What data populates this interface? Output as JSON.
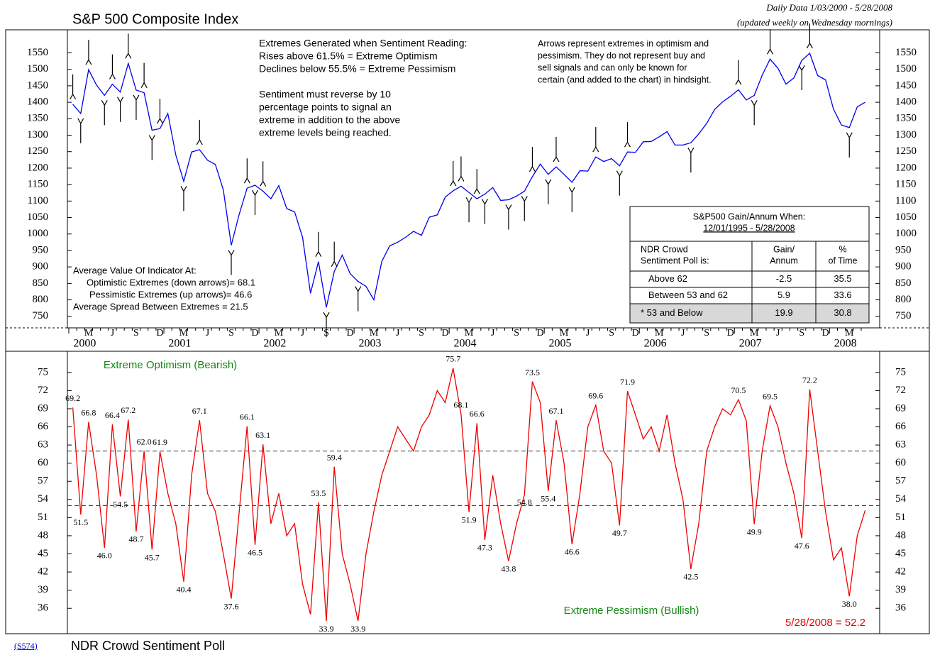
{
  "header": {
    "title": "S&P 500 Composite Index",
    "subtitle": "Daily Data 1/03/2000 - 5/28/2008",
    "update_note": "(updated weekly on Wednesday mornings)"
  },
  "notes": {
    "extremes": [
      "Extremes Generated when Sentiment Reading:",
      "Rises above 61.5%  = Extreme Optimism",
      "Declines below 55.5% = Extreme Pessimism",
      "",
      "Sentiment must reverse by 10",
      "percentage points to signal an",
      "extreme in addition to the above",
      "extreme levels being reached."
    ],
    "arrows": [
      "Arrows represent extremes in optimism and",
      "pessimism. They do not represent buy and",
      "sell signals and can only be known for",
      "certain (and added to the chart) in hindsight."
    ],
    "averages": [
      "Average Value Of Indicator At:",
      "Optimistic Extremes (down arrows)=  68.1",
      "Pessimistic Extremes (up arrows)=  46.6",
      "Average Spread Between Extremes = 21.5"
    ]
  },
  "table": {
    "title": "S&P500 Gain/Annum When:",
    "period": "12/01/1995 -  5/28/2008",
    "header": [
      [
        "NDR Crowd",
        "Sentiment Poll is:"
      ],
      [
        "Gain/",
        "Annum"
      ],
      [
        "%",
        "of Time"
      ]
    ],
    "rows": [
      [
        "Above 62",
        -2.5,
        35.5
      ],
      [
        "Between 53 and 62",
        5.9,
        33.6
      ],
      [
        "* 53 and Below",
        19.9,
        30.8
      ]
    ]
  },
  "footer": {
    "code": "(S574)",
    "title": "NDR Crowd Sentiment Poll"
  },
  "axis": {
    "month_labels": [
      "M",
      "J",
      "S",
      "D"
    ],
    "years": [
      "2000",
      "2001",
      "2002",
      "2003",
      "2004",
      "2005",
      "2006",
      "2007",
      "2008"
    ]
  },
  "chart_data": [
    {
      "type": "line",
      "ylim": [
        715,
        1620
      ],
      "yticks": [
        750,
        800,
        850,
        900,
        950,
        1000,
        1050,
        1100,
        1150,
        1200,
        1250,
        1300,
        1350,
        1400,
        1450,
        1500,
        1550
      ],
      "x": [
        "2000-01",
        "2000-02",
        "2000-03",
        "2000-04",
        "2000-05",
        "2000-06",
        "2000-07",
        "2000-08",
        "2000-09",
        "2000-10",
        "2000-11",
        "2000-12",
        "2001-01",
        "2001-02",
        "2001-03",
        "2001-04",
        "2001-05",
        "2001-06",
        "2001-07",
        "2001-08",
        "2001-09",
        "2001-10",
        "2001-11",
        "2001-12",
        "2002-01",
        "2002-02",
        "2002-03",
        "2002-04",
        "2002-05",
        "2002-06",
        "2002-07",
        "2002-08",
        "2002-09",
        "2002-10",
        "2002-11",
        "2002-12",
        "2003-01",
        "2003-02",
        "2003-03",
        "2003-04",
        "2003-05",
        "2003-06",
        "2003-07",
        "2003-08",
        "2003-09",
        "2003-10",
        "2003-11",
        "2003-12",
        "2004-01",
        "2004-02",
        "2004-03",
        "2004-04",
        "2004-05",
        "2004-06",
        "2004-07",
        "2004-08",
        "2004-09",
        "2004-10",
        "2004-11",
        "2004-12",
        "2005-01",
        "2005-02",
        "2005-03",
        "2005-04",
        "2005-05",
        "2005-06",
        "2005-07",
        "2005-08",
        "2005-09",
        "2005-10",
        "2005-11",
        "2005-12",
        "2006-01",
        "2006-02",
        "2006-03",
        "2006-04",
        "2006-05",
        "2006-06",
        "2006-07",
        "2006-08",
        "2006-09",
        "2006-10",
        "2006-11",
        "2006-12",
        "2007-01",
        "2007-02",
        "2007-03",
        "2007-04",
        "2007-05",
        "2007-06",
        "2007-07",
        "2007-08",
        "2007-09",
        "2007-10",
        "2007-11",
        "2007-12",
        "2008-01",
        "2008-02",
        "2008-03",
        "2008-04",
        "2008-05"
      ],
      "series": [
        {
          "color": "#0000ee",
          "values": [
            1394,
            1366,
            1499,
            1452,
            1421,
            1455,
            1431,
            1518,
            1437,
            1429,
            1315,
            1320,
            1366,
            1240,
            1160,
            1249,
            1256,
            1224,
            1211,
            1134,
            966,
            1060,
            1139,
            1148,
            1130,
            1107,
            1147,
            1077,
            1067,
            990,
            820,
            916,
            777,
            886,
            936,
            880,
            856,
            841,
            800,
            917,
            964,
            975,
            990,
            1008,
            996,
            1051,
            1058,
            1112,
            1131,
            1145,
            1126,
            1107,
            1121,
            1141,
            1102,
            1104,
            1115,
            1130,
            1174,
            1212,
            1181,
            1204,
            1181,
            1157,
            1192,
            1191,
            1234,
            1220,
            1229,
            1207,
            1249,
            1248,
            1280,
            1281,
            1295,
            1311,
            1270,
            1270,
            1277,
            1304,
            1336,
            1378,
            1401,
            1418,
            1438,
            1407,
            1421,
            1482,
            1531,
            1503,
            1455,
            1474,
            1527,
            1549,
            1481,
            1468,
            1379,
            1331,
            1323,
            1386,
            1400
          ]
        }
      ]
    },
    {
      "type": "line",
      "ylim": [
        31.8,
        78.5
      ],
      "yticks": [
        36,
        39,
        42,
        45,
        48,
        51,
        54,
        57,
        60,
        63,
        66,
        69,
        72,
        75
      ],
      "reference_lines": [
        62,
        53
      ],
      "annotations": {
        "optimism": "Extreme Optimism (Bearish)",
        "pessimism": "Extreme Pessimism (Bullish)",
        "latest": "5/28/2008 = 52.2"
      },
      "x": [
        "2000-01",
        "2000-02",
        "2000-03",
        "2000-04",
        "2000-05",
        "2000-06",
        "2000-07",
        "2000-08",
        "2000-09",
        "2000-10",
        "2000-11",
        "2000-12",
        "2001-01",
        "2001-02",
        "2001-03",
        "2001-04",
        "2001-05",
        "2001-06",
        "2001-07",
        "2001-08",
        "2001-09",
        "2001-10",
        "2001-11",
        "2001-12",
        "2002-01",
        "2002-02",
        "2002-03",
        "2002-04",
        "2002-05",
        "2002-06",
        "2002-07",
        "2002-08",
        "2002-09",
        "2002-10",
        "2002-11",
        "2002-12",
        "2003-01",
        "2003-02",
        "2003-03",
        "2003-04",
        "2003-05",
        "2003-06",
        "2003-07",
        "2003-08",
        "2003-09",
        "2003-10",
        "2003-11",
        "2003-12",
        "2004-01",
        "2004-02",
        "2004-03",
        "2004-04",
        "2004-05",
        "2004-06",
        "2004-07",
        "2004-08",
        "2004-09",
        "2004-10",
        "2004-11",
        "2004-12",
        "2005-01",
        "2005-02",
        "2005-03",
        "2005-04",
        "2005-05",
        "2005-06",
        "2005-07",
        "2005-08",
        "2005-09",
        "2005-10",
        "2005-11",
        "2005-12",
        "2006-01",
        "2006-02",
        "2006-03",
        "2006-04",
        "2006-05",
        "2006-06",
        "2006-07",
        "2006-08",
        "2006-09",
        "2006-10",
        "2006-11",
        "2006-12",
        "2007-01",
        "2007-02",
        "2007-03",
        "2007-04",
        "2007-05",
        "2007-06",
        "2007-07",
        "2007-08",
        "2007-09",
        "2007-10",
        "2007-11",
        "2007-12",
        "2008-01",
        "2008-02",
        "2008-03",
        "2008-04",
        "2008-05"
      ],
      "series": [
        {
          "color": "#ee0000",
          "values": [
            69.2,
            51.5,
            66.8,
            58,
            46.0,
            66.4,
            54.5,
            67.2,
            48.7,
            62.0,
            45.7,
            61.9,
            55,
            50,
            40.4,
            58,
            67.1,
            55,
            52,
            45,
            37.6,
            52,
            66.1,
            46.5,
            63.1,
            50,
            55,
            48,
            50,
            40,
            35,
            53.5,
            33.9,
            59.4,
            45,
            40,
            33.9,
            45,
            52,
            58,
            62,
            66,
            64,
            62,
            66,
            68,
            72,
            70,
            75.7,
            68.1,
            51.9,
            66.6,
            47.3,
            58,
            50,
            43.8,
            50,
            54.8,
            73.5,
            70,
            55.4,
            67.1,
            60,
            46.6,
            55,
            66,
            69.6,
            62,
            60,
            49.7,
            71.9,
            68,
            64,
            66,
            62,
            68,
            60,
            54,
            42.5,
            50,
            62,
            66,
            69,
            68,
            70.5,
            67,
            49.9,
            62,
            69.5,
            66,
            60,
            55,
            47.6,
            72.2,
            62,
            52,
            44,
            46,
            38.0,
            48,
            52.2
          ]
        }
      ],
      "optimism_extremes": {
        "x": [
          "2000-01",
          "2000-03",
          "2000-06",
          "2000-08",
          "2000-10",
          "2000-12",
          "2001-05",
          "2001-11",
          "2002-01",
          "2002-08",
          "2002-10",
          "2004-01",
          "2004-02",
          "2004-04",
          "2004-11",
          "2005-02",
          "2005-07",
          "2005-11",
          "2007-01",
          "2007-05",
          "2007-10"
        ],
        "values": [
          69.2,
          66.8,
          66.4,
          67.2,
          62.0,
          61.9,
          67.1,
          66.1,
          63.1,
          53.5,
          59.4,
          75.7,
          68.1,
          66.6,
          73.5,
          67.1,
          69.6,
          71.9,
          70.5,
          69.5,
          72.2
        ],
        "value_labels": [
          "69.2",
          "66.8",
          "66.4",
          "67.2",
          "62.0",
          "61.9",
          "67.1",
          "66.1",
          "63.1",
          "53.5",
          "59.4",
          "75.7",
          "68.1",
          "66.6",
          "73.5",
          "67.1",
          "69.6",
          "71.9",
          "70.5",
          "69.5",
          "72.2"
        ]
      },
      "pessimism_extremes": {
        "x": [
          "2000-02",
          "2000-05",
          "2000-07",
          "2000-09",
          "2000-11",
          "2001-03",
          "2001-09",
          "2001-12",
          "2002-09",
          "2003-01",
          "2004-03",
          "2004-05",
          "2004-08",
          "2004-10",
          "2005-01",
          "2005-04",
          "2005-10",
          "2006-07",
          "2007-03",
          "2007-09",
          "2008-03"
        ],
        "values": [
          51.5,
          46.0,
          54.5,
          48.7,
          45.7,
          40.4,
          37.6,
          46.5,
          33.9,
          33.9,
          51.9,
          47.3,
          43.8,
          54.8,
          55.4,
          46.6,
          49.7,
          42.5,
          49.9,
          47.6,
          38.0
        ],
        "value_labels": [
          "51.5",
          "46.0",
          "54.5",
          "48.7",
          "45.7",
          "40.4",
          "37.6",
          "46.5",
          "33.9",
          "33.9",
          "51.9",
          "47.3",
          "43.8",
          "54.8",
          "55.4",
          "46.6",
          "49.7",
          "42.5",
          "49.9",
          "47.6",
          "38.0"
        ]
      }
    }
  ]
}
